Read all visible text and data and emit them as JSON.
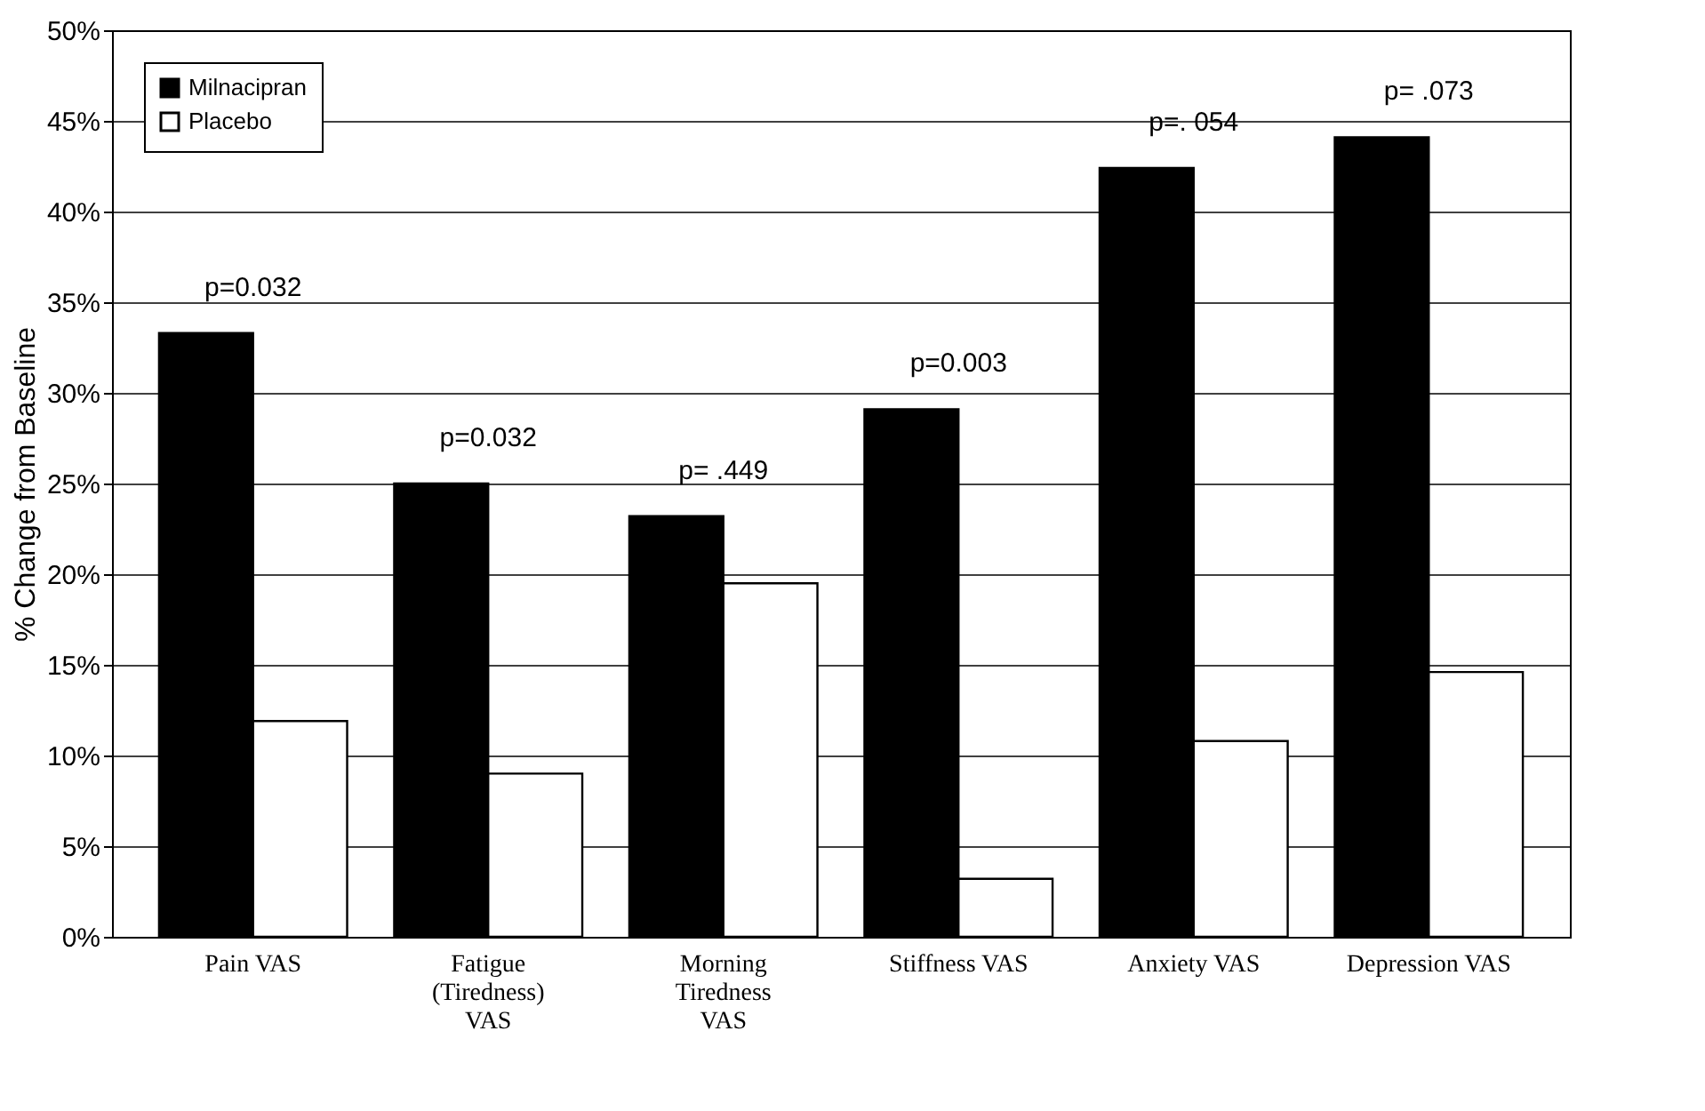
{
  "chart_data": {
    "type": "bar",
    "ylabel": "% Change from Baseline",
    "categories": [
      "Pain VAS",
      "Fatigue (Tiredness) VAS",
      "Morning Tiredness VAS",
      "Stiffness VAS",
      "Anxiety VAS",
      "Depression VAS"
    ],
    "series": [
      {
        "name": "Milnacipran",
        "color": "#000000",
        "values": [
          33.3,
          25,
          23.2,
          29.1,
          42.4,
          44.1
        ]
      },
      {
        "name": "Placebo",
        "color": "#ffffff",
        "values": [
          11.9,
          9,
          19.5,
          3.2,
          10.8,
          14.6
        ]
      }
    ],
    "ylim": [
      0,
      50
    ],
    "yticks": [
      {
        "value": 0,
        "label": "0%"
      },
      {
        "value": 5,
        "label": "5%"
      },
      {
        "value": 10,
        "label": "10%"
      },
      {
        "value": 15,
        "label": "15%"
      },
      {
        "value": 20,
        "label": "20%"
      },
      {
        "value": 25,
        "label": "25%"
      },
      {
        "value": 30,
        "label": "30%"
      },
      {
        "value": 35,
        "label": "35%"
      },
      {
        "value": 40,
        "label": "40%"
      },
      {
        "value": 45,
        "label": "45%"
      },
      {
        "value": 50,
        "label": "50%"
      }
    ],
    "annotations": [
      "p=0.032",
      "p=0.032",
      "p= .449",
      "p=0.003",
      "p=. 054",
      "p= .073"
    ],
    "grid": "y",
    "legend": "top left"
  }
}
